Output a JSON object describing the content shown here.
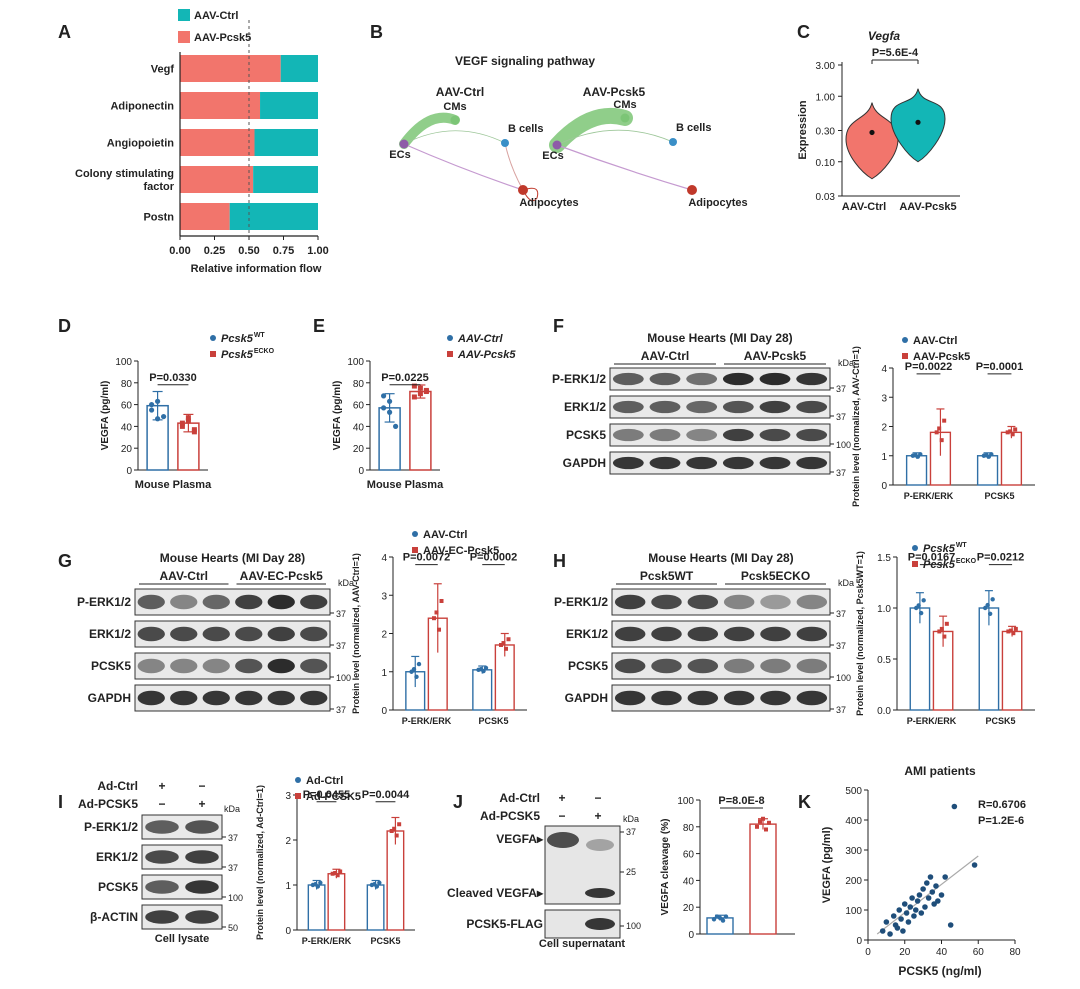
{
  "panels": {
    "A": "A",
    "B": "B",
    "C": "C",
    "D": "D",
    "E": "E",
    "F": "F",
    "G": "G",
    "H": "H",
    "I": "I",
    "J": "J",
    "K": "K"
  },
  "colors": {
    "ctrl": "#F2756C",
    "treat": "#13B6B6",
    "blue": "#2F6FA6",
    "red": "#C9403B",
    "green": "#7CC576",
    "purple": "#8E5BA8",
    "node_blue": "#3A8FC7",
    "node_red": "#C0392B"
  },
  "units": {
    "kda": "kDa",
    "k37": "37",
    "k100": "100",
    "k50": "50",
    "k25": "25"
  },
  "chart_data": [
    {
      "panel": "A",
      "type": "bar",
      "orientation": "horizontal-stacked",
      "categories": [
        "Vegf",
        "Adiponectin",
        "Angiopoietin",
        "Colony stimulating factor",
        "Postn"
      ],
      "category_lines": [
        [
          "Vegf"
        ],
        [
          "Adiponectin"
        ],
        [
          "Angiopoietin"
        ],
        [
          "Colony stimulating",
          "factor"
        ],
        [
          "Postn"
        ]
      ],
      "series": [
        {
          "name": "AAV-Ctrl",
          "values": [
            0.73,
            0.58,
            0.54,
            0.53,
            0.36
          ]
        },
        {
          "name": "AAV-Pcsk5",
          "values": [
            0.27,
            0.42,
            0.46,
            0.47,
            0.64
          ]
        }
      ],
      "legend": [
        "AAV-Ctrl",
        "AAV-Pcsk5"
      ],
      "xlabel": "Relative information flow",
      "xlim": [
        0,
        1
      ],
      "xticks": [
        "0.00",
        "0.25",
        "0.50",
        "0.75",
        "1.00"
      ],
      "ref_line": 0.5
    },
    {
      "panel": "B",
      "type": "network",
      "title": "VEGF signaling pathway",
      "groups": [
        {
          "label": "AAV-Ctrl",
          "nodes": [
            "CMs",
            "B cells",
            "ECs",
            "Adipocytes"
          ]
        },
        {
          "label": "AAV-Pcsk5",
          "nodes": [
            "CMs",
            "B cells",
            "ECs",
            "Adipocytes"
          ]
        }
      ]
    },
    {
      "panel": "C",
      "type": "violin",
      "title": "Vegfa",
      "ylabel": "Expression",
      "yscale": "log",
      "yticks": [
        "3.00",
        "1.00",
        "0.30",
        "0.10",
        "0.03"
      ],
      "groups": [
        "AAV-Ctrl",
        "AAV-Pcsk5"
      ],
      "medians": [
        0.28,
        0.4
      ],
      "p_value": "P=5.6E-4"
    },
    {
      "panel": "D",
      "type": "bar",
      "categories": [
        "Pcsk5WT",
        "Pcsk5ECKO"
      ],
      "legend": [
        "Pcsk5",
        "Pcsk5"
      ],
      "legend_sup": [
        "WT",
        "ECKO"
      ],
      "values": [
        59,
        43
      ],
      "sd": [
        13,
        8
      ],
      "points": [
        [
          60,
          47,
          49,
          55,
          63
        ],
        [
          40,
          45,
          35,
          43,
          48,
          37
        ]
      ],
      "ylabel": "VEGFA (pg/ml)",
      "ylim": [
        0,
        100
      ],
      "yticks": [
        "0",
        "20",
        "40",
        "60",
        "80",
        "100"
      ],
      "xlabel": "Mouse Plasma",
      "p_value": "P=0.0330"
    },
    {
      "panel": "E",
      "type": "bar",
      "categories": [
        "AAV-Ctrl",
        "AAV-Pcsk5"
      ],
      "legend": [
        "AAV-Ctrl",
        "AAV-Pcsk5"
      ],
      "values": [
        57,
        72
      ],
      "sd": [
        13,
        6
      ],
      "points": [
        [
          68,
          63,
          40,
          57,
          53
        ],
        [
          77,
          70,
          73,
          67,
          75,
          72
        ]
      ],
      "ylabel": "VEGFA (pg/ml)",
      "ylim": [
        0,
        100
      ],
      "yticks": [
        "0",
        "20",
        "40",
        "60",
        "80",
        "100"
      ],
      "xlabel": "Mouse Plasma",
      "p_value": "P=0.0225"
    },
    {
      "panel": "F",
      "type": "bar",
      "categories": [
        "P-ERK/ERK",
        "PCSK5"
      ],
      "series": [
        {
          "name": "AAV-Ctrl",
          "values": [
            1.0,
            1.0
          ]
        },
        {
          "name": "AAV-Pcsk5",
          "values": [
            1.8,
            1.8
          ]
        }
      ],
      "sd": [
        [
          0.1,
          0.1
        ],
        [
          0.8,
          0.2
        ]
      ],
      "ylabel": "Protein level (normalized, AAV-Ctrl=1)",
      "ylim": [
        0,
        4
      ],
      "yticks": [
        "0",
        "1",
        "2",
        "3",
        "4"
      ],
      "p_values": [
        "P=0.0022",
        "P=0.0001"
      ],
      "blot": {
        "title": "Mouse Hearts (MI Day 28)",
        "groups": [
          "AAV-Ctrl",
          "AAV-Pcsk5"
        ],
        "rows": [
          "P-ERK1/2",
          "ERK1/2",
          "PCSK5",
          "GAPDH"
        ]
      }
    },
    {
      "panel": "G",
      "type": "bar",
      "categories": [
        "P-ERK/ERK",
        "PCSK5"
      ],
      "series": [
        {
          "name": "AAV-Ctrl",
          "values": [
            1.0,
            1.05
          ]
        },
        {
          "name": "AAV-EC-Pcsk5",
          "values": [
            2.4,
            1.7
          ]
        }
      ],
      "sd": [
        [
          0.4,
          0.1
        ],
        [
          0.9,
          0.3
        ]
      ],
      "ylabel": "Protein level (normalized, AAV-Ctrl=1)",
      "ylim": [
        0,
        4
      ],
      "yticks": [
        "0",
        "1",
        "2",
        "3",
        "4"
      ],
      "p_values": [
        "P=0.0072",
        "P=0.0002"
      ],
      "blot": {
        "title": "Mouse Hearts (MI Day 28)",
        "groups": [
          "AAV-Ctrl",
          "AAV-EC-Pcsk5"
        ],
        "rows": [
          "P-ERK1/2",
          "ERK1/2",
          "PCSK5",
          "GAPDH"
        ]
      }
    },
    {
      "panel": "H",
      "type": "bar",
      "categories": [
        "P-ERK/ERK",
        "PCSK5"
      ],
      "legend": [
        "Pcsk5",
        "Pcsk5"
      ],
      "legend_sup": [
        "WT",
        "ECKO"
      ],
      "series": [
        {
          "name": "Pcsk5WT",
          "values": [
            1.0,
            1.0
          ]
        },
        {
          "name": "Pcsk5ECKO",
          "values": [
            0.77,
            0.77
          ]
        }
      ],
      "sd": [
        [
          0.15,
          0.17
        ],
        [
          0.15,
          0.05
        ]
      ],
      "ylabel": "Protein level (normalized, Pcsk5WT=1)",
      "ylim": [
        0,
        1.5
      ],
      "yticks": [
        "0.0",
        "0.5",
        "1.0",
        "1.5"
      ],
      "p_values": [
        "P=0.0167",
        "P=0.0212"
      ],
      "blot": {
        "title": "Mouse Hearts (MI Day 28)",
        "groups": [
          "Pcsk5WT",
          "Pcsk5ECKO"
        ],
        "rows": [
          "P-ERK1/2",
          "ERK1/2",
          "PCSK5",
          "GAPDH"
        ]
      }
    },
    {
      "panel": "I",
      "type": "bar",
      "categories": [
        "P-ERK/ERK",
        "PCSK5"
      ],
      "series": [
        {
          "name": "Ad-Ctrl",
          "values": [
            1.0,
            1.0
          ]
        },
        {
          "name": "Ad-PCSK5",
          "values": [
            1.25,
            2.2
          ]
        }
      ],
      "sd": [
        [
          0.1,
          0.1
        ],
        [
          0.1,
          0.3
        ]
      ],
      "ylabel": "Protein level (normalized, Ad-Ctrl=1)",
      "ylim": [
        0,
        3
      ],
      "yticks": [
        "0",
        "1",
        "2",
        "3"
      ],
      "p_values": [
        "P=0.0455",
        "P=0.0044"
      ],
      "blot": {
        "conditions": [
          "Ad-Ctrl",
          "Ad-PCSK5"
        ],
        "signs": [
          [
            "+",
            "−"
          ],
          [
            "−",
            "+"
          ]
        ],
        "rows": [
          "P-ERK1/2",
          "ERK1/2",
          "PCSK5",
          "β-ACTIN"
        ],
        "caption": "Cell lysate"
      }
    },
    {
      "panel": "J",
      "type": "bar",
      "categories": [
        "Ad-Ctrl",
        "Ad-PCSK5"
      ],
      "values": [
        12,
        82
      ],
      "sd": [
        2,
        4
      ],
      "points": [
        [
          11,
          13,
          12,
          10,
          13
        ],
        [
          80,
          84,
          86,
          78,
          83
        ]
      ],
      "ylabel": "VEGFA cleavage (%)",
      "ylim": [
        0,
        100
      ],
      "yticks": [
        "0",
        "20",
        "40",
        "60",
        "80",
        "100"
      ],
      "p_value": "P=8.0E-8",
      "blot": {
        "conditions": [
          "Ad-Ctrl",
          "Ad-PCSK5"
        ],
        "signs": [
          [
            "+",
            "−"
          ],
          [
            "−",
            "+"
          ]
        ],
        "bands": [
          "VEGFA▸",
          "Cleaved VEGFA▸",
          "PCSK5-FLAG"
        ],
        "caption": "Cell supernatant"
      }
    },
    {
      "panel": "K",
      "type": "scatter",
      "title": "AMI patients",
      "xlabel": "PCSK5 (ng/ml)",
      "ylabel": "VEGFA (pg/ml)",
      "xlim": [
        0,
        80
      ],
      "ylim": [
        0,
        500
      ],
      "xticks": [
        "0",
        "20",
        "40",
        "60",
        "80"
      ],
      "yticks": [
        "0",
        "100",
        "200",
        "300",
        "400",
        "500"
      ],
      "r": "R=0.6706",
      "p_value": "P=1.2E-6",
      "x": [
        8,
        10,
        12,
        14,
        15,
        16,
        17,
        18,
        19,
        20,
        21,
        22,
        23,
        24,
        25,
        26,
        27,
        28,
        29,
        30,
        31,
        32,
        33,
        34,
        35,
        36,
        37,
        38,
        40,
        42,
        45,
        47,
        58
      ],
      "y": [
        30,
        60,
        20,
        80,
        50,
        40,
        100,
        70,
        30,
        120,
        90,
        60,
        110,
        140,
        80,
        100,
        130,
        150,
        90,
        170,
        110,
        190,
        140,
        210,
        160,
        120,
        180,
        130,
        150,
        210,
        50,
        445,
        250
      ],
      "fit": [
        [
          5,
          20
        ],
        [
          60,
          280
        ]
      ]
    }
  ]
}
